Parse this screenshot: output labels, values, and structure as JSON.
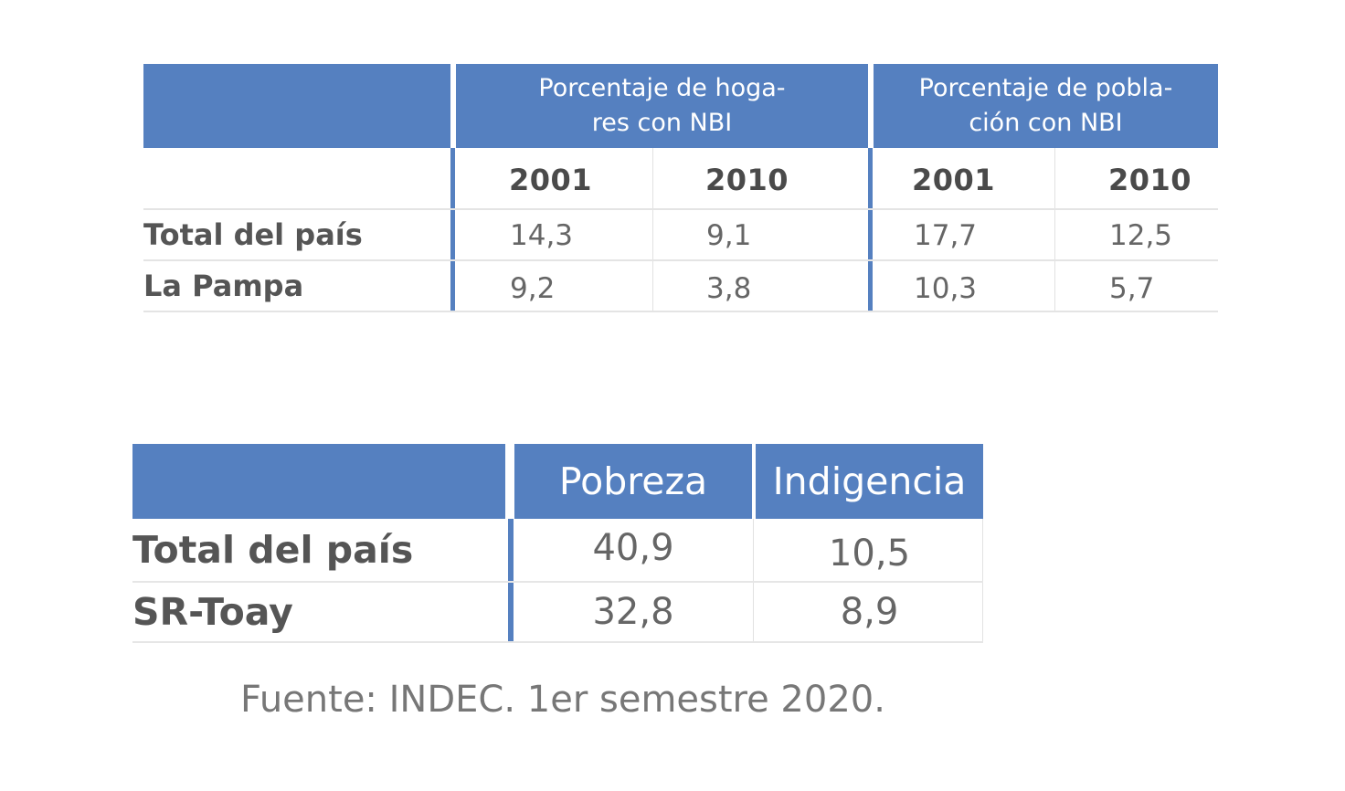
{
  "table_nbi": {
    "header": {
      "group1": "Porcentaje de hoga-\nres con NBI",
      "group2": "Porcentaje de pobla-\nción con NBI"
    },
    "years": [
      "2001",
      "2010",
      "2001",
      "2010"
    ],
    "rows": [
      {
        "label": "Total del país",
        "values": [
          "14,3",
          "9,1",
          "17,7",
          "12,5"
        ]
      },
      {
        "label": "La Pampa",
        "values": [
          "9,2",
          "3,8",
          "10,3",
          "5,7"
        ]
      }
    ]
  },
  "table_pobreza": {
    "header": {
      "col1": "Pobreza",
      "col2": "Indigencia"
    },
    "rows": [
      {
        "label": "Total del país",
        "values": [
          "40,9",
          "10,5"
        ]
      },
      {
        "label": "SR-Toay",
        "values": [
          "32,8",
          "8,9"
        ]
      }
    ]
  },
  "source": "Fuente: INDEC. 1er semestre 2020.",
  "colors": {
    "header_blue": "#5580c0"
  }
}
